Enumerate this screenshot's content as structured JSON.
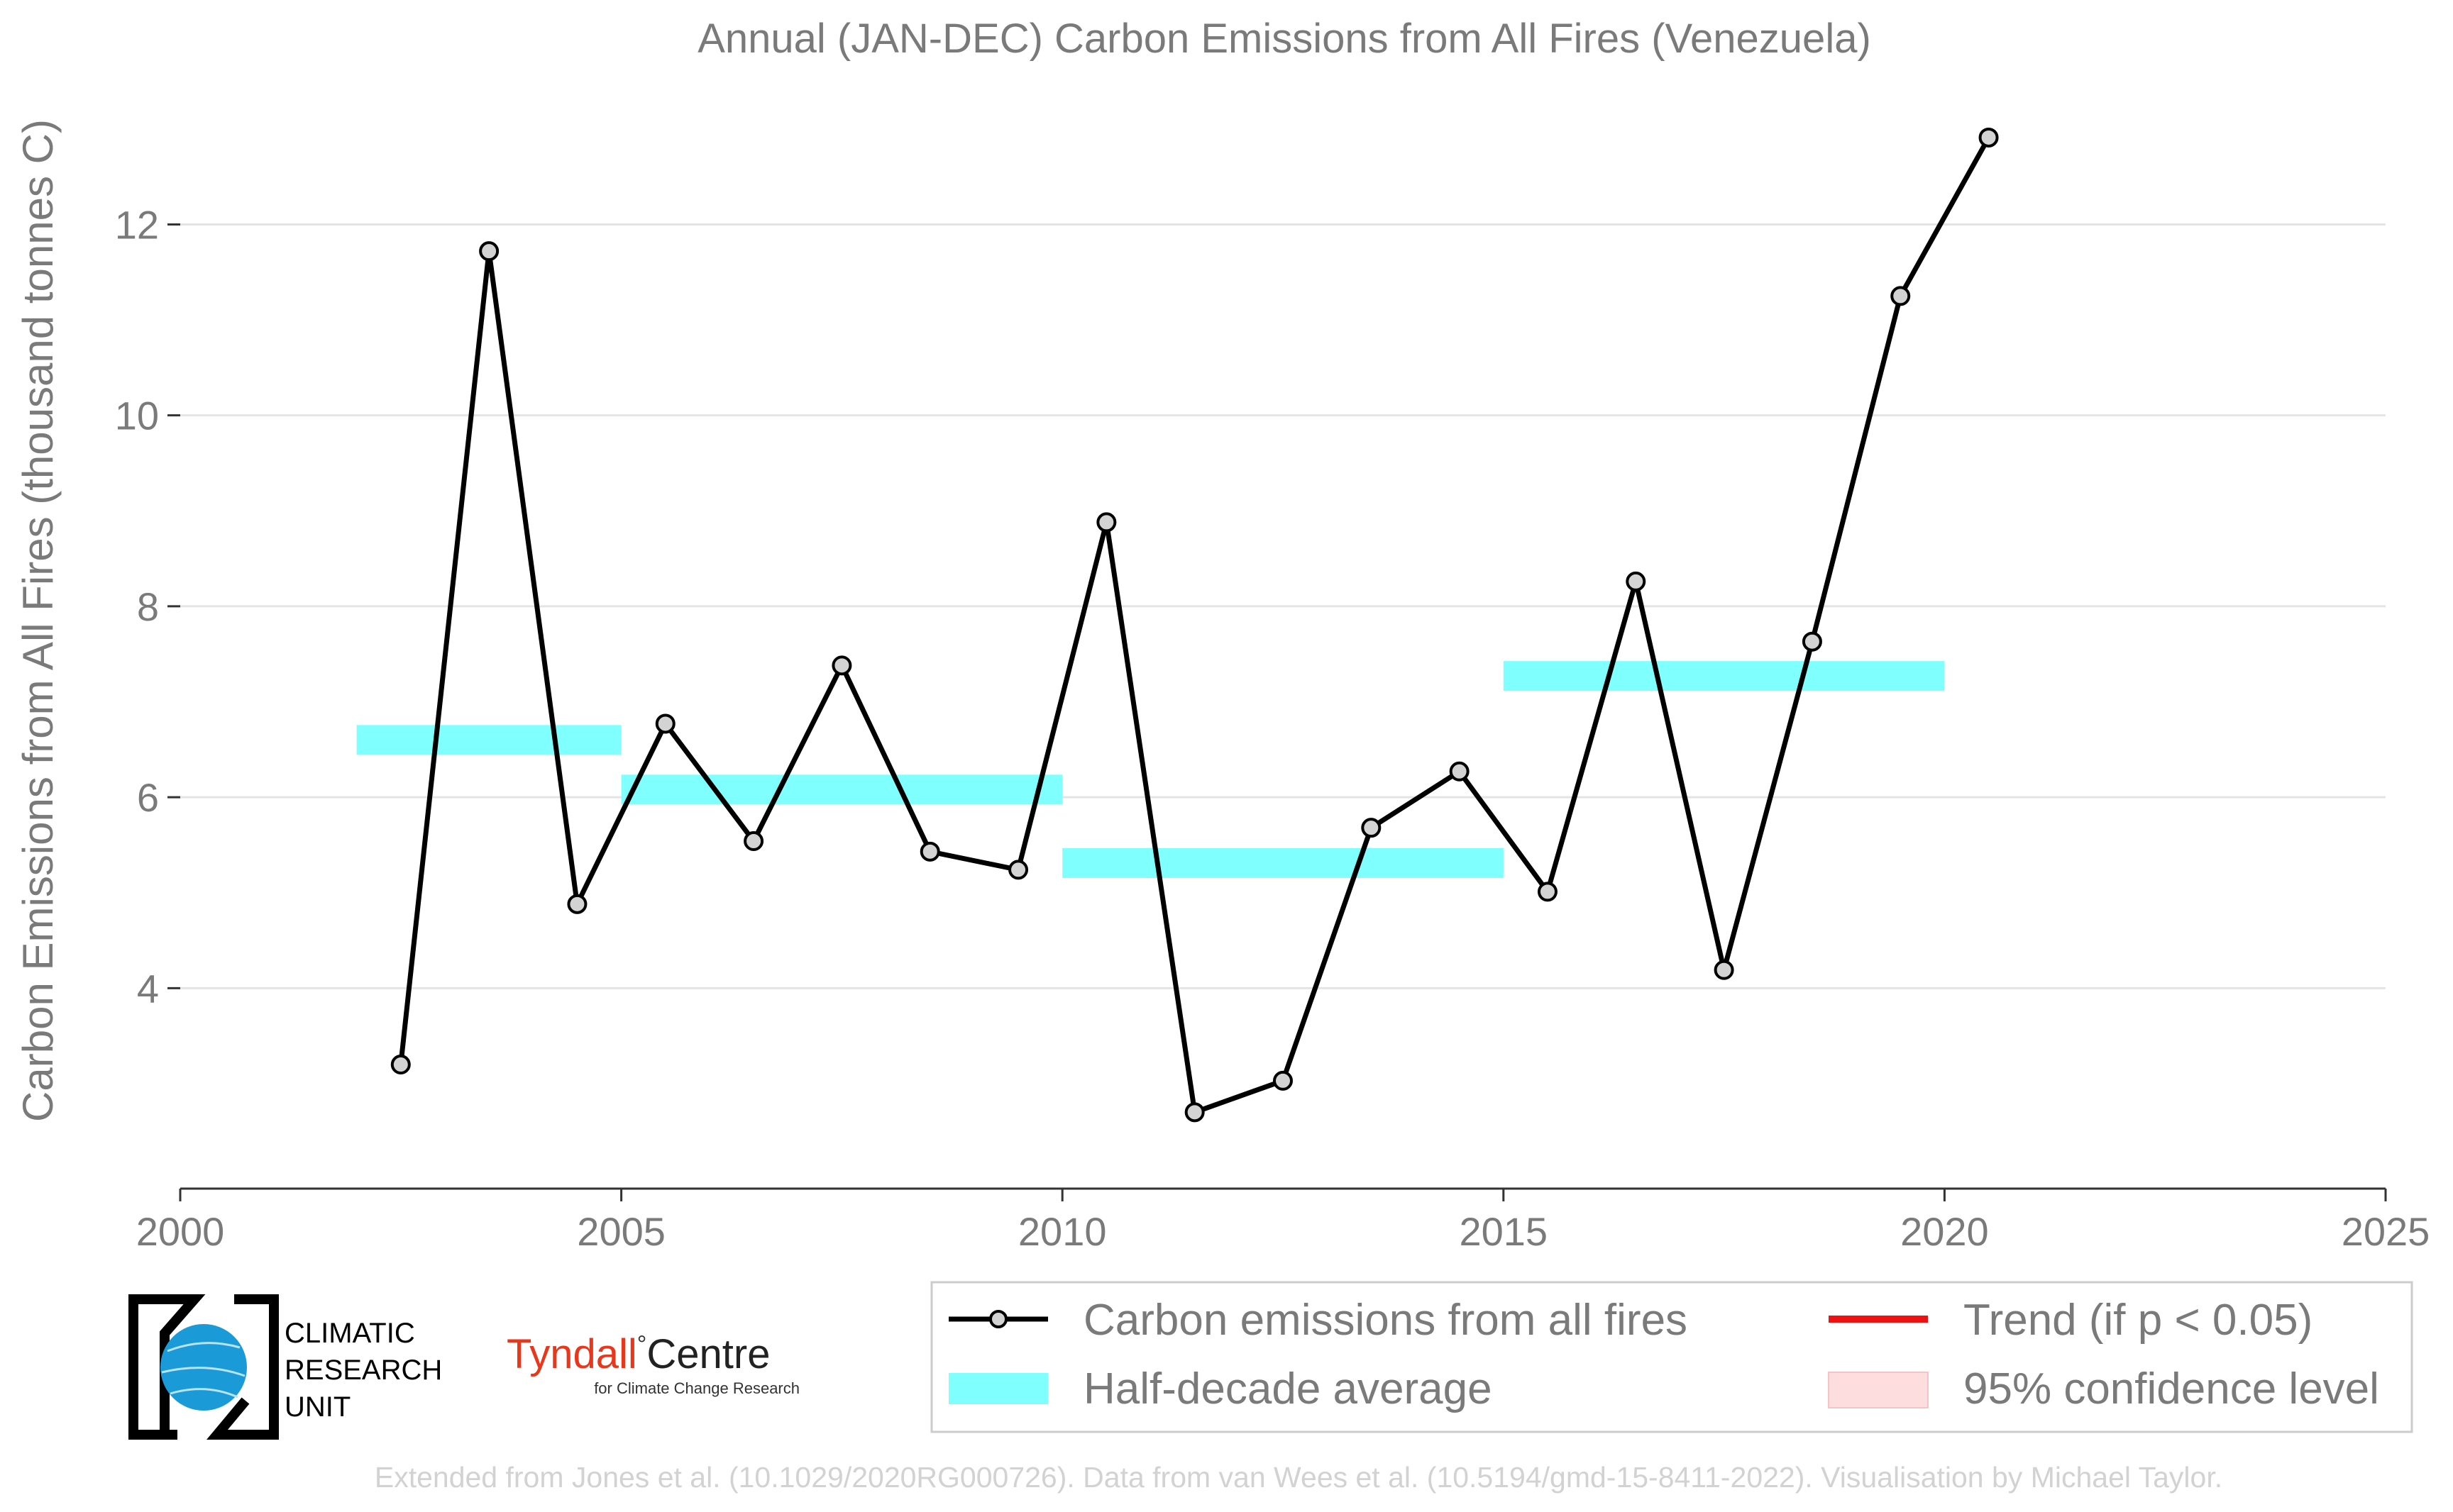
{
  "chart_data": {
    "type": "line",
    "title": "Annual (JAN-DEC) Carbon Emissions from All Fires (Venezuela)",
    "xlabel": "",
    "ylabel": "Carbon Emissions from All Fires (thousand tonnes C)",
    "xlim": [
      2000,
      2025
    ],
    "ylim": [
      1.9,
      13.4
    ],
    "x_ticks": [
      2000,
      2005,
      2010,
      2015,
      2020,
      2025
    ],
    "y_ticks": [
      4,
      6,
      8,
      10,
      12
    ],
    "grid": "horizontal",
    "legend_position": "bottom-right",
    "series": [
      {
        "name": "Carbon emissions from all fires",
        "color": "#000000",
        "marker_fill": "#d3d3d3",
        "x": [
          2002.5,
          2003.5,
          2004.5,
          2005.5,
          2006.5,
          2007.5,
          2008.5,
          2009.5,
          2010.5,
          2011.5,
          2012.5,
          2013.5,
          2014.5,
          2015.5,
          2016.5,
          2017.5,
          2018.5,
          2019.5,
          2020.5
        ],
        "y": [
          3.2,
          11.72,
          4.88,
          6.77,
          5.54,
          7.38,
          5.43,
          5.24,
          8.88,
          2.7,
          3.03,
          5.68,
          6.27,
          5.01,
          8.26,
          4.19,
          7.63,
          11.25,
          12.91
        ]
      }
    ],
    "half_decade_average": {
      "name": "Half-decade average",
      "color": "#80ffff",
      "segments": [
        {
          "x_start": 2002,
          "x_end": 2005,
          "value": 6.6
        },
        {
          "x_start": 2005,
          "x_end": 2010,
          "value": 6.08
        },
        {
          "x_start": 2010,
          "x_end": 2015,
          "value": 5.31
        },
        {
          "x_start": 2015,
          "x_end": 2020,
          "value": 7.27
        }
      ]
    },
    "legend": [
      {
        "label": "Carbon emissions from all fires",
        "kind": "line-marker",
        "color": "#000000"
      },
      {
        "label": "Half-decade average",
        "kind": "band",
        "color": "#80ffff"
      },
      {
        "label": "Trend (if p < 0.05)",
        "kind": "line",
        "color": "#ee1111"
      },
      {
        "label": "95% confidence level",
        "kind": "band",
        "color": "#fddddd"
      }
    ]
  },
  "logos": {
    "cru_lines": [
      "CLIMATIC",
      "RESEARCH",
      "UNIT"
    ],
    "tyndall_main": "Tyndall",
    "tyndall_deg": "°",
    "tyndall_centre": "Centre",
    "tyndall_sub": "for Climate Change Research"
  },
  "credit": "Extended from Jones et al. (10.1029/2020RG000726). Data from van Wees et al. (10.5194/gmd-15-8411-2022). Visualisation by Michael Taylor.",
  "colors": {
    "text_gray": "#7a7a7a",
    "grid": "#e4e4e4",
    "axis": "#333333",
    "tyndall_red": "#e8371b",
    "cru_blue": "#1a9ad6"
  }
}
